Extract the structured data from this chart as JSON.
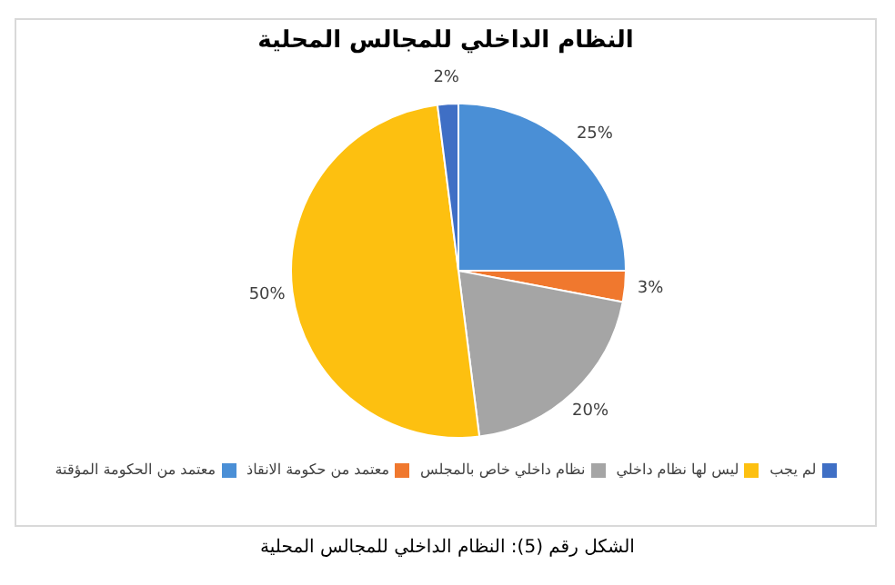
{
  "chart_data": {
    "type": "pie",
    "title": "النظام الداخلي للمجالس المحلية",
    "categories": [
      "معتمد من الحكومة المؤقتة",
      "معتمد من حكومة الانقاذ",
      "نظام داخلي خاص بالمجلس",
      "ليس لها نظام داخلي",
      "لم يجب"
    ],
    "values": [
      25,
      3,
      20,
      50,
      2
    ],
    "value_labels": [
      "25%",
      "3%",
      "20%",
      "50%",
      "2%"
    ],
    "colors": [
      "#4a8fd6",
      "#f0782e",
      "#a5a5a5",
      "#fdc010",
      "#3f6fc5"
    ],
    "legend": "bottom",
    "annotations": [
      "الشكل رقم (5): النظام الداخلي للمجالس المحلية"
    ]
  }
}
